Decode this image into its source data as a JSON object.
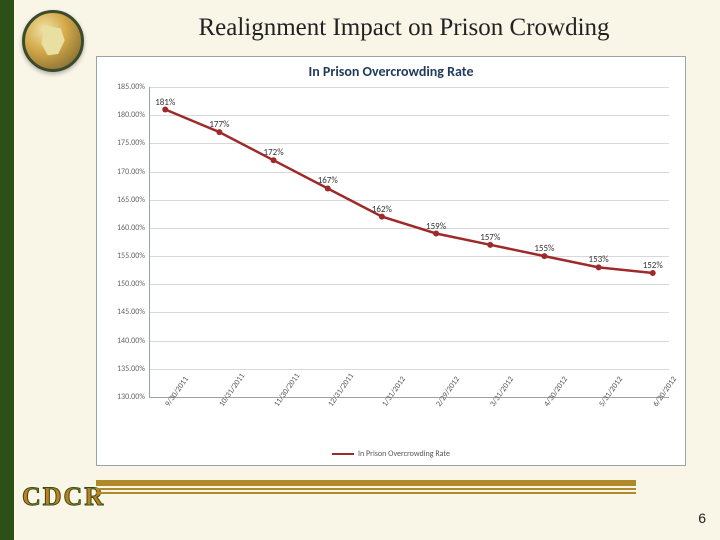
{
  "slide": {
    "title": "Realignment Impact on Prison Crowding",
    "page_number": "6",
    "org_acronym": "CDCR",
    "background_color": "#f9f6e8",
    "left_stripe_color": "#2d5016",
    "footer_bar_color": "#b08a2a"
  },
  "chart": {
    "type": "line",
    "title": "In Prison Overcrowding Rate",
    "title_color": "#1f3a5f",
    "title_fontsize": 14,
    "border_color": "#9aa3ab",
    "background_color": "#ffffff",
    "grid_color": "#d8d8d8",
    "label_fontsize": 8,
    "data_label_fontsize": 9,
    "line_color": "#9e2a2a",
    "line_width": 2.5,
    "marker": "circle",
    "marker_size": 3,
    "ylim": [
      130,
      185
    ],
    "ytick_step": 5,
    "y_format_suffix": "%",
    "y_decimals": 2,
    "categories": [
      "9/30/2011",
      "10/31/2011",
      "11/30/2011",
      "12/31/2011",
      "1/31/2012",
      "2/29/2012",
      "3/31/2012",
      "4/30/2012",
      "5/31/2012",
      "6/20/2012"
    ],
    "values": [
      181,
      177,
      172,
      167,
      162,
      159,
      157,
      155,
      153,
      152
    ],
    "data_labels": [
      "181%",
      "177%",
      "172%",
      "167%",
      "162%",
      "159%",
      "157%",
      "155%",
      "153%",
      "152%"
    ],
    "x_rotation_deg": -55,
    "legend_label": "In Prison Overcrowding Rate"
  }
}
